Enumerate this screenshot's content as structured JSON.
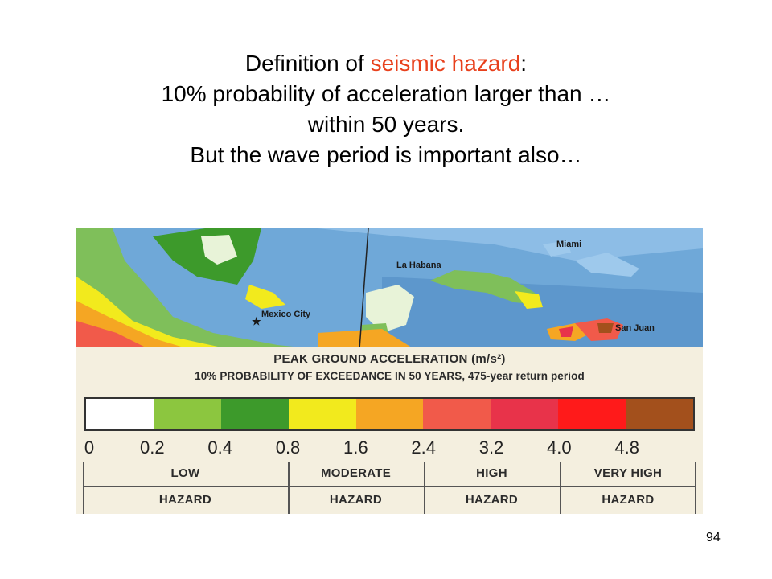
{
  "slide": {
    "title_part1": "Definition of ",
    "title_accent": "seismic hazard",
    "title_part2": ":",
    "title_line2": "10% probability of acceleration larger than …",
    "title_line3": "within 50 years.",
    "title_line4": "But the wave period is important also…",
    "accent_color": "#e8401c",
    "page_number": "94"
  },
  "map": {
    "labels": {
      "miami": "Miami",
      "la_habana": "La Habana",
      "mexico_city": "Mexico City",
      "san_juan": "San Juan"
    }
  },
  "legend": {
    "heading": "PEAK GROUND ACCELERATION",
    "unit": "(m/s²)",
    "subheading": "10% PROBABILITY OF EXCEEDANCE IN 50 YEARS, 475-year return period",
    "scale_colors": [
      "#ffffff",
      "#8cc63f",
      "#3d9a2b",
      "#f2ea1d",
      "#f5a623",
      "#f15a4a",
      "#e8334a",
      "#ff1a1a",
      "#a3501c"
    ],
    "ticks": [
      "0",
      "0.2",
      "0.4",
      "0.8",
      "1.6",
      "2.4",
      "3.2",
      "4.0",
      "4.8"
    ],
    "classes": [
      {
        "level": "LOW",
        "word": "HAZARD"
      },
      {
        "level": "MODERATE",
        "word": "HAZARD"
      },
      {
        "level": "HIGH",
        "word": "HAZARD"
      },
      {
        "level": "VERY HIGH",
        "word": "HAZARD"
      }
    ]
  }
}
